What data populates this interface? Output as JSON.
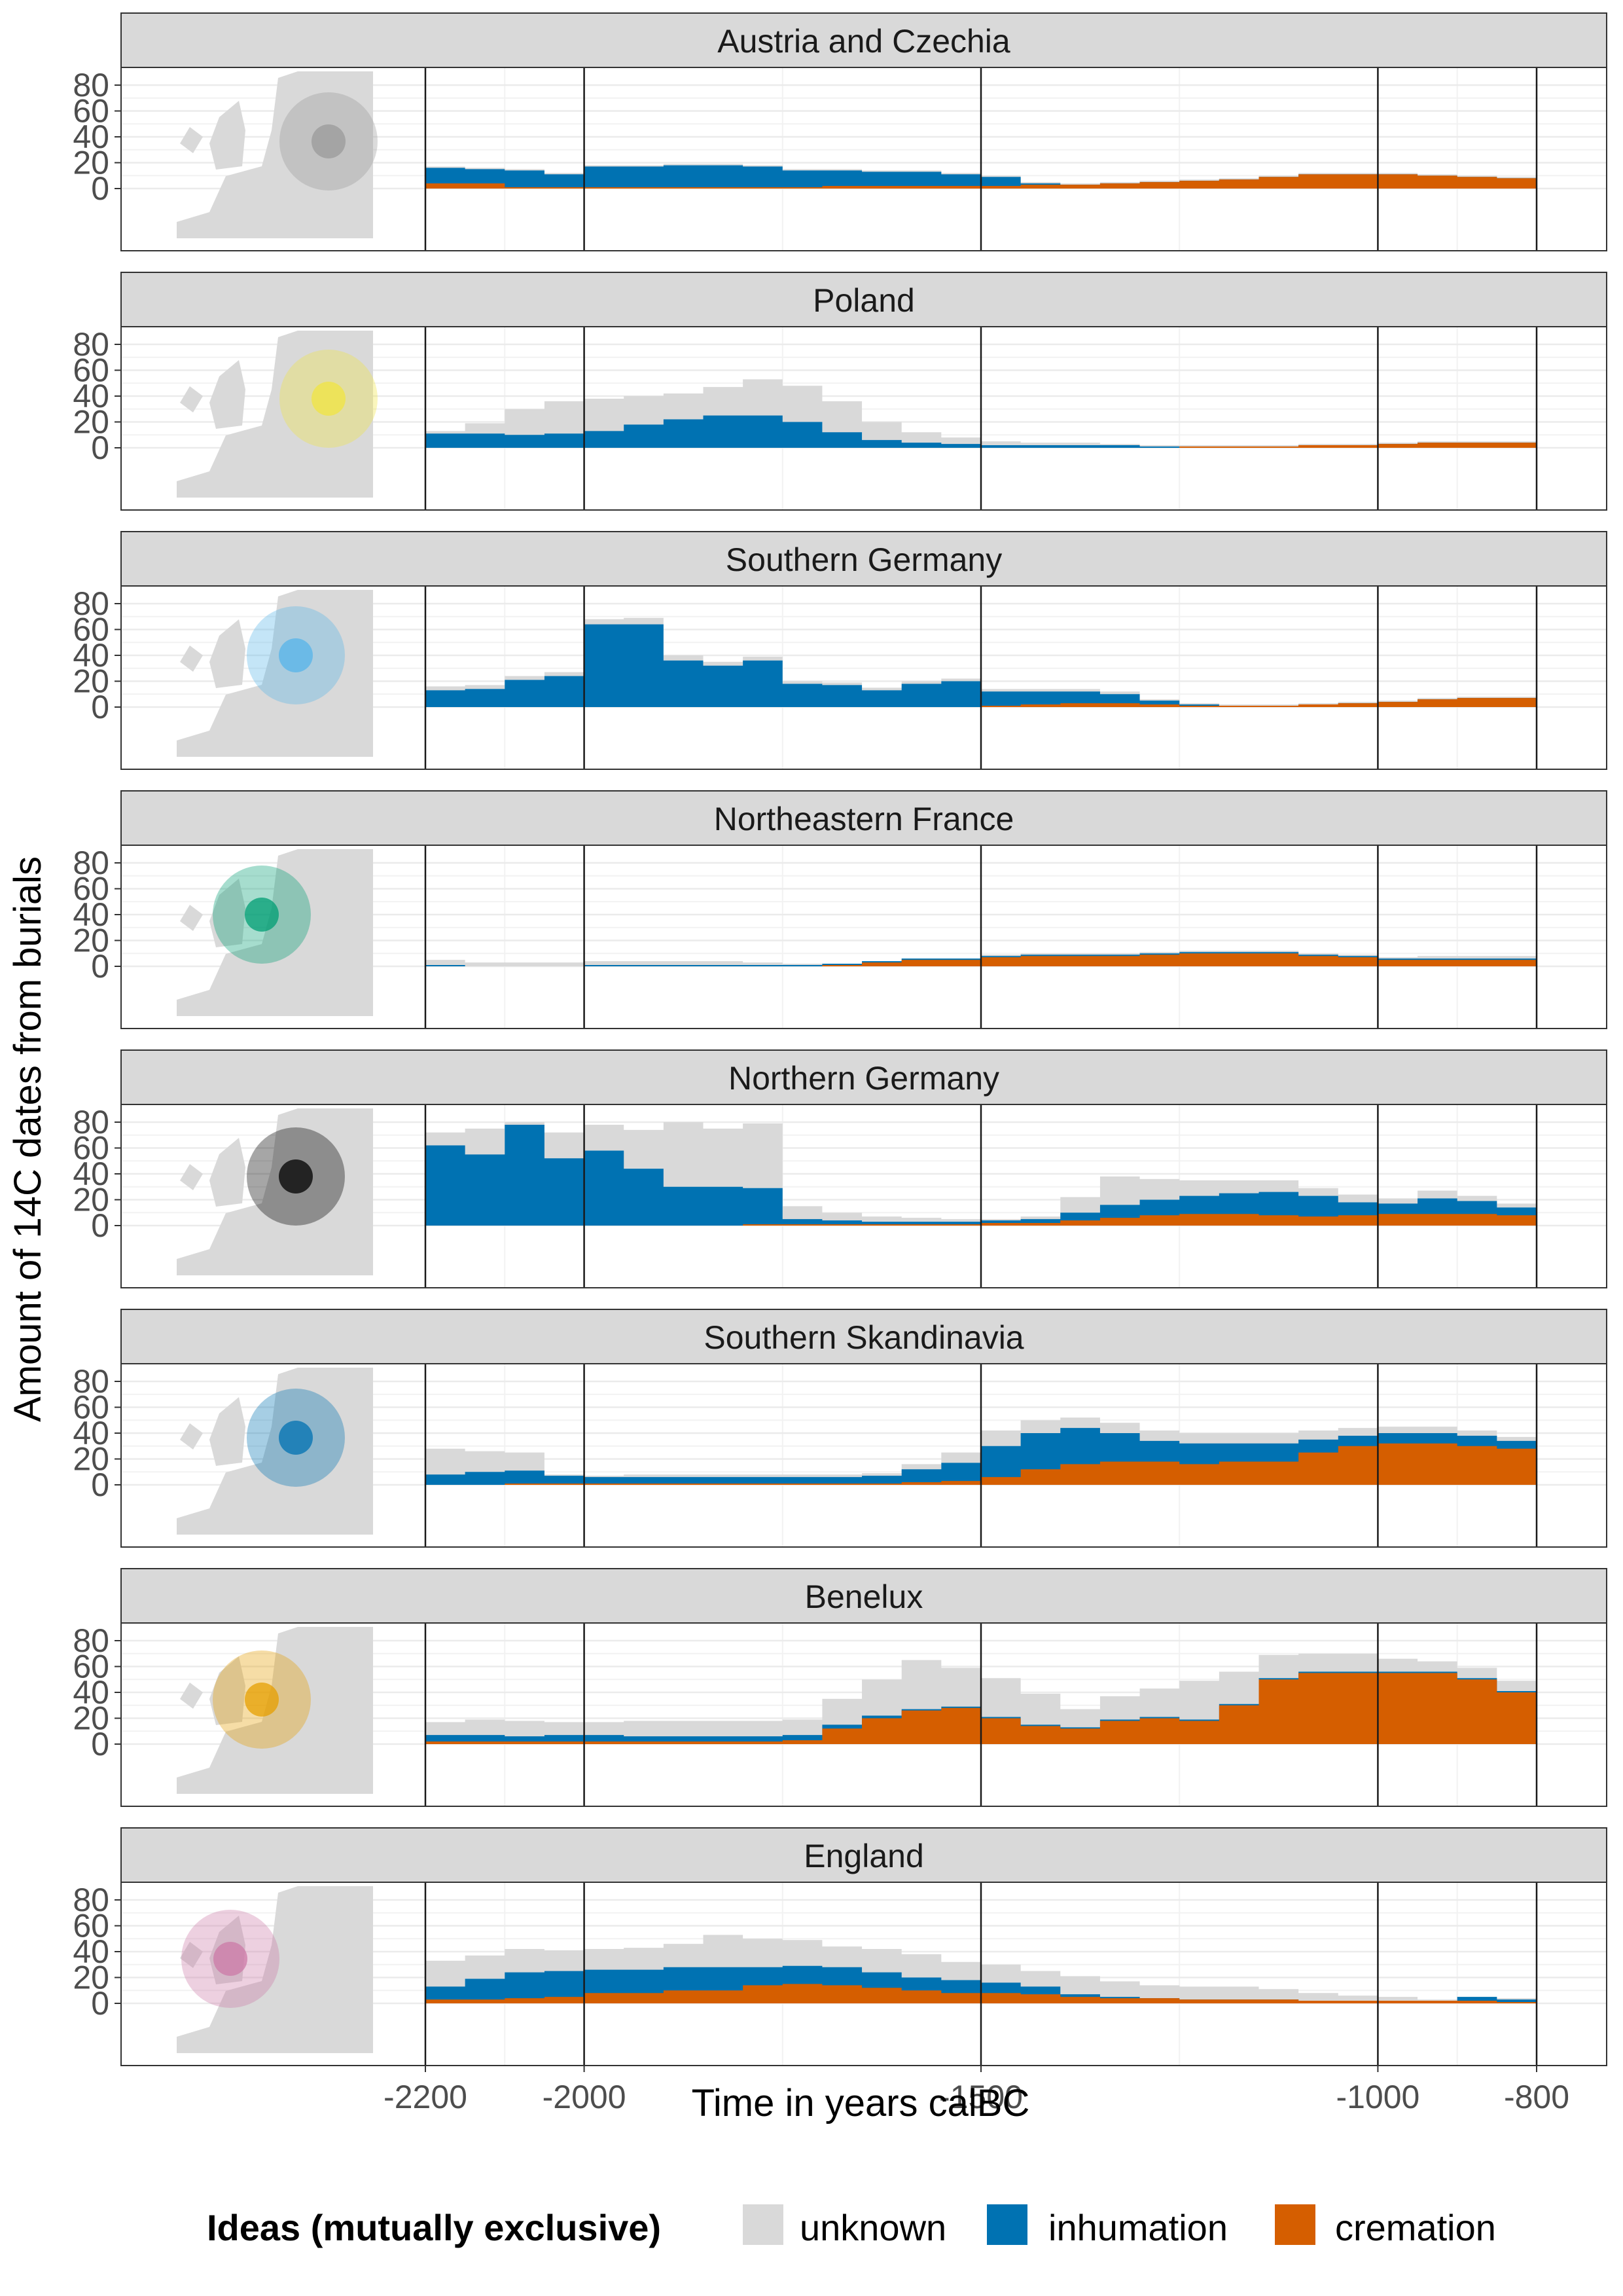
{
  "chart_data": {
    "type": "area",
    "stacked": true,
    "ylabel": "Amount of 14C dates from burials",
    "xlabel": "Time in years calBC",
    "xlim": [
      -2200,
      -800
    ],
    "ylim": [
      0,
      80
    ],
    "x_ticks": [
      -2200,
      -2000,
      -1500,
      -1000,
      -800
    ],
    "x_tick_labels": [
      "-2200",
      "-2000",
      "-1500",
      "-1000",
      "-800"
    ],
    "y_ticks": [
      0,
      20,
      40,
      60,
      80
    ],
    "y_tick_labels": [
      "0",
      "20",
      "40",
      "60",
      "80"
    ],
    "grid": true,
    "legend": {
      "title": "Ideas (mutually exclusive)",
      "position": "bottom",
      "entries": [
        {
          "label": "unknown",
          "color": "#d9d9d9"
        },
        {
          "label": "inhumation",
          "color": "#0072b2"
        },
        {
          "label": "cremation",
          "color": "#d55e00"
        }
      ]
    },
    "x": [
      -2200,
      -2150,
      -2100,
      -2050,
      -2000,
      -1950,
      -1900,
      -1850,
      -1800,
      -1750,
      -1700,
      -1650,
      -1600,
      -1550,
      -1500,
      -1450,
      -1400,
      -1350,
      -1300,
      -1250,
      -1200,
      -1150,
      -1100,
      -1050,
      -1000,
      -950,
      -900,
      -850,
      -800
    ],
    "panels": [
      {
        "title": "Austria and Czechia",
        "region_color": "#999999",
        "series": [
          {
            "name": "cremation",
            "values": [
              4,
              4,
              1,
              1,
              1,
              1,
              1,
              1,
              1,
              1,
              2,
              2,
              2,
              2,
              2,
              3,
              3,
              4,
              5,
              6,
              7,
              9,
              11,
              11,
              11,
              10,
              9,
              8,
              5
            ]
          },
          {
            "name": "inhumation",
            "values": [
              12,
              11,
              13,
              10,
              16,
              16,
              17,
              17,
              16,
              13,
              12,
              11,
              11,
              9,
              7,
              1,
              0,
              0,
              0,
              0,
              0,
              0,
              0,
              0,
              0,
              0,
              0,
              0,
              0
            ]
          },
          {
            "name": "unknown",
            "values": [
              1,
              1,
              1,
              1,
              1,
              1,
              1,
              1,
              1,
              1,
              1,
              1,
              1,
              1,
              1,
              1,
              1,
              1,
              1,
              1,
              1,
              1,
              1,
              1,
              1,
              1,
              1,
              1,
              1
            ]
          }
        ]
      },
      {
        "title": "Poland",
        "region_color": "#f0e442",
        "series": [
          {
            "name": "cremation",
            "values": [
              0,
              0,
              0,
              0,
              0,
              0,
              0,
              0,
              0,
              0,
              0,
              0,
              0,
              0,
              0,
              0,
              0,
              0,
              0,
              1,
              1,
              1,
              2,
              2,
              3,
              4,
              4,
              4,
              2
            ]
          },
          {
            "name": "inhumation",
            "values": [
              11,
              11,
              10,
              11,
              13,
              18,
              22,
              25,
              25,
              20,
              12,
              6,
              4,
              3,
              2,
              2,
              2,
              2,
              1,
              0,
              0,
              0,
              0,
              0,
              0,
              0,
              0,
              0,
              0
            ]
          },
          {
            "name": "unknown",
            "values": [
              2,
              8,
              20,
              25,
              25,
              22,
              20,
              22,
              28,
              28,
              24,
              14,
              8,
              5,
              3,
              2,
              2,
              1,
              1,
              1,
              1,
              1,
              1,
              1,
              1,
              1,
              1,
              1,
              1
            ]
          }
        ]
      },
      {
        "title": "Southern Germany",
        "region_color": "#56b4e9",
        "series": [
          {
            "name": "cremation",
            "values": [
              0,
              0,
              0,
              0,
              0,
              0,
              0,
              0,
              0,
              0,
              0,
              0,
              0,
              0,
              1,
              2,
              3,
              3,
              2,
              1,
              1,
              1,
              2,
              3,
              4,
              6,
              7,
              7,
              2
            ]
          },
          {
            "name": "inhumation",
            "values": [
              13,
              14,
              21,
              24,
              64,
              64,
              36,
              32,
              36,
              18,
              17,
              13,
              18,
              20,
              11,
              10,
              9,
              7,
              3,
              1,
              0,
              0,
              0,
              0,
              0,
              0,
              0,
              0,
              0
            ]
          },
          {
            "name": "unknown",
            "values": [
              3,
              3,
              3,
              3,
              4,
              5,
              4,
              3,
              3,
              2,
              2,
              2,
              2,
              2,
              2,
              2,
              2,
              2,
              1,
              1,
              1,
              1,
              1,
              1,
              1,
              1,
              1,
              1,
              1
            ]
          }
        ]
      },
      {
        "title": "Northeastern France",
        "region_color": "#009e73",
        "series": [
          {
            "name": "cremation",
            "values": [
              0,
              0,
              0,
              0,
              0,
              0,
              0,
              0,
              0,
              0,
              1,
              3,
              5,
              5,
              7,
              8,
              8,
              8,
              9,
              10,
              10,
              10,
              8,
              7,
              5,
              5,
              5,
              5,
              3
            ]
          },
          {
            "name": "inhumation",
            "values": [
              1,
              0,
              0,
              0,
              1,
              1,
              1,
              1,
              1,
              1,
              1,
              1,
              1,
              1,
              1,
              1,
              1,
              1,
              1,
              1,
              1,
              1,
              1,
              1,
              1,
              1,
              1,
              1,
              1
            ]
          },
          {
            "name": "unknown",
            "values": [
              4,
              3,
              3,
              3,
              3,
              3,
              3,
              3,
              2,
              1,
              0,
              0,
              0,
              0,
              1,
              1,
              1,
              1,
              1,
              1,
              1,
              1,
              1,
              1,
              1,
              2,
              2,
              2,
              2
            ]
          }
        ]
      },
      {
        "title": "Northern Germany",
        "region_color": "#000000",
        "series": [
          {
            "name": "cremation",
            "values": [
              0,
              0,
              0,
              0,
              0,
              0,
              0,
              0,
              1,
              1,
              1,
              1,
              1,
              1,
              2,
              2,
              4,
              6,
              8,
              9,
              9,
              8,
              7,
              8,
              9,
              9,
              9,
              8,
              3
            ]
          },
          {
            "name": "inhumation",
            "values": [
              62,
              55,
              78,
              52,
              58,
              44,
              30,
              30,
              28,
              4,
              3,
              2,
              2,
              2,
              2,
              3,
              6,
              10,
              12,
              14,
              16,
              18,
              16,
              10,
              8,
              12,
              10,
              6,
              2
            ]
          },
          {
            "name": "unknown",
            "values": [
              10,
              20,
              2,
              20,
              20,
              30,
              50,
              45,
              50,
              10,
              6,
              4,
              3,
              2,
              1,
              2,
              12,
              22,
              16,
              12,
              10,
              9,
              6,
              6,
              4,
              6,
              4,
              3,
              2
            ]
          }
        ]
      },
      {
        "title": "Southern Skandinavia",
        "region_color": "#0072b2",
        "series": [
          {
            "name": "cremation",
            "values": [
              0,
              0,
              1,
              1,
              1,
              1,
              1,
              1,
              1,
              1,
              1,
              1,
              2,
              3,
              6,
              12,
              16,
              18,
              18,
              16,
              18,
              18,
              25,
              30,
              32,
              32,
              30,
              28,
              14
            ]
          },
          {
            "name": "inhumation",
            "values": [
              8,
              10,
              10,
              6,
              5,
              5,
              5,
              5,
              5,
              5,
              5,
              6,
              10,
              14,
              24,
              28,
              28,
              22,
              16,
              16,
              14,
              14,
              10,
              8,
              8,
              8,
              8,
              6,
              4
            ]
          },
          {
            "name": "unknown",
            "values": [
              20,
              16,
              14,
              1,
              1,
              2,
              2,
              2,
              2,
              2,
              2,
              2,
              4,
              8,
              12,
              10,
              8,
              8,
              8,
              8,
              8,
              8,
              7,
              6,
              5,
              5,
              4,
              3,
              3
            ]
          }
        ]
      },
      {
        "title": "Benelux",
        "region_color": "#e69f00",
        "series": [
          {
            "name": "cremation",
            "values": [
              2,
              2,
              2,
              2,
              2,
              2,
              2,
              2,
              2,
              3,
              12,
              20,
              26,
              28,
              20,
              14,
              12,
              18,
              20,
              18,
              30,
              50,
              55,
              55,
              55,
              55,
              50,
              40,
              8
            ]
          },
          {
            "name": "inhumation",
            "values": [
              5,
              5,
              4,
              5,
              5,
              4,
              4,
              4,
              4,
              4,
              3,
              2,
              1,
              1,
              1,
              1,
              1,
              1,
              1,
              1,
              1,
              1,
              1,
              1,
              1,
              1,
              1,
              1,
              1
            ]
          },
          {
            "name": "unknown",
            "values": [
              10,
              12,
              12,
              10,
              10,
              12,
              12,
              12,
              12,
              12,
              20,
              28,
              38,
              30,
              30,
              24,
              14,
              18,
              22,
              30,
              25,
              18,
              14,
              14,
              10,
              8,
              8,
              8,
              4
            ]
          }
        ]
      },
      {
        "title": "England",
        "region_color": "#cc79a7",
        "series": [
          {
            "name": "cremation",
            "values": [
              3,
              3,
              4,
              5,
              8,
              8,
              10,
              10,
              14,
              15,
              14,
              12,
              10,
              8,
              8,
              7,
              5,
              4,
              4,
              3,
              3,
              3,
              2,
              2,
              2,
              2,
              2,
              1,
              1
            ]
          },
          {
            "name": "inhumation",
            "values": [
              10,
              16,
              20,
              20,
              18,
              18,
              18,
              18,
              14,
              14,
              14,
              12,
              10,
              10,
              8,
              6,
              2,
              1,
              0,
              0,
              0,
              0,
              0,
              0,
              0,
              0,
              3,
              2,
              1
            ]
          },
          {
            "name": "unknown",
            "values": [
              20,
              18,
              18,
              16,
              16,
              17,
              18,
              25,
              22,
              20,
              16,
              18,
              18,
              14,
              14,
              12,
              14,
              12,
              10,
              10,
              10,
              8,
              6,
              4,
              3,
              1,
              0,
              1,
              0
            ]
          }
        ]
      }
    ]
  }
}
